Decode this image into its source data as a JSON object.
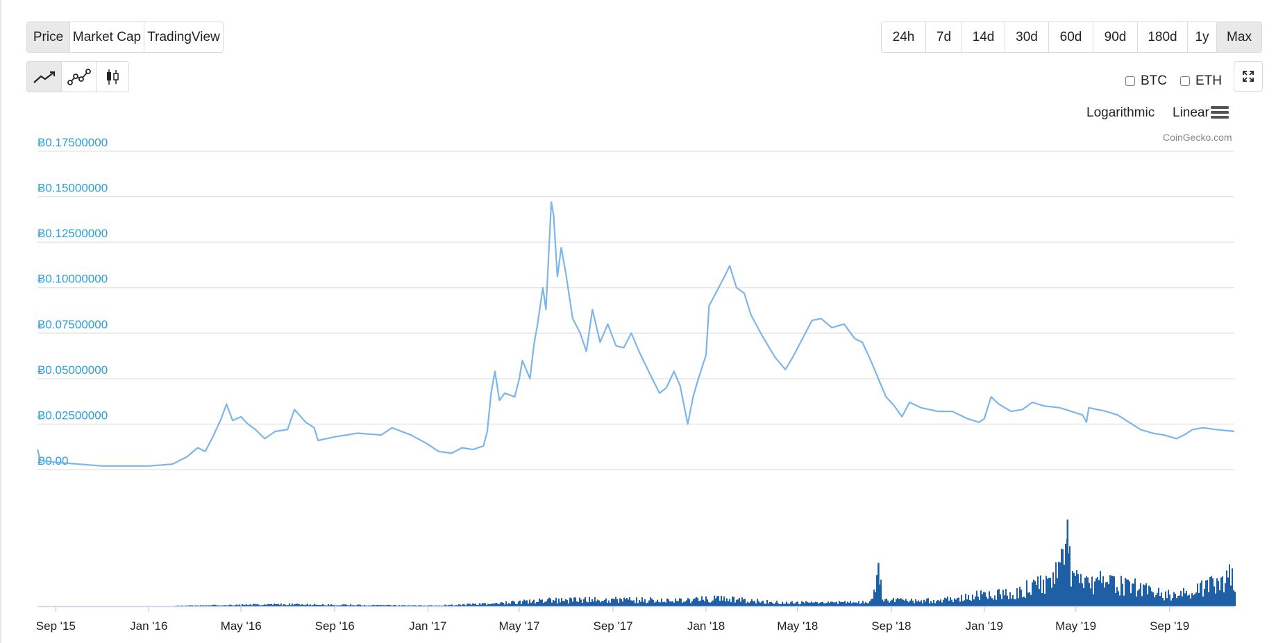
{
  "view_tabs": [
    {
      "label": "Price",
      "active": true
    },
    {
      "label": "Market Cap",
      "active": false
    },
    {
      "label": "TradingView",
      "active": false
    }
  ],
  "range_tabs": [
    {
      "label": "24h",
      "active": false
    },
    {
      "label": "7d",
      "active": false
    },
    {
      "label": "14d",
      "active": false
    },
    {
      "label": "30d",
      "active": false
    },
    {
      "label": "60d",
      "active": false
    },
    {
      "label": "90d",
      "active": false
    },
    {
      "label": "180d",
      "active": false
    },
    {
      "label": "1y",
      "active": false
    },
    {
      "label": "Max",
      "active": true
    }
  ],
  "chart_type_tabs": [
    {
      "icon": "line-chart-icon",
      "active": true
    },
    {
      "icon": "scatter-line-icon",
      "active": false
    },
    {
      "icon": "candlestick-icon",
      "active": false
    }
  ],
  "compare": [
    {
      "label": "BTC",
      "checked": false
    },
    {
      "label": "ETH",
      "checked": false
    }
  ],
  "scale_options": {
    "logarithmic": "Logarithmic",
    "linear": "Linear"
  },
  "menu_icon": "hamburger-menu-icon",
  "expand_icon": "expand-icon",
  "credit": "CoinGecko.com",
  "colors": {
    "price_line": "#7cb5ec",
    "volume": "#1f5fa6",
    "axis_label": "#2b9fd9",
    "grid": "#e6e6e6"
  },
  "chart_data": {
    "type": "line",
    "x_ticks": [
      "Sep '15",
      "Jan '16",
      "May '16",
      "Sep '16",
      "Jan '17",
      "May '17",
      "Sep '17",
      "Jan '18",
      "May '18",
      "Sep '18",
      "Jan '19",
      "May '19",
      "Sep '19"
    ],
    "y_tick_labels": [
      "Ƀ0.00",
      "Ƀ0.02500000",
      "Ƀ0.05000000",
      "Ƀ0.07500000",
      "Ƀ0.10000000",
      "Ƀ0.12500000",
      "Ƀ0.15000000",
      "Ƀ0.17500000"
    ],
    "ylim": [
      0,
      0.175
    ],
    "xlim": [
      "2015-08-08",
      "2019-11-25"
    ],
    "grid": true,
    "series": [
      {
        "values": [
          [
            "2015-08-08",
            0.011
          ],
          [
            "2015-08-12",
            0.005
          ],
          [
            "2015-09-01",
            0.004
          ],
          [
            "2015-10-01",
            0.003
          ],
          [
            "2015-11-01",
            0.002
          ],
          [
            "2015-12-01",
            0.002
          ],
          [
            "2016-01-01",
            0.002
          ],
          [
            "2016-02-01",
            0.003
          ],
          [
            "2016-02-20",
            0.007
          ],
          [
            "2016-03-05",
            0.012
          ],
          [
            "2016-03-15",
            0.01
          ],
          [
            "2016-03-25",
            0.018
          ],
          [
            "2016-04-05",
            0.028
          ],
          [
            "2016-04-12",
            0.036
          ],
          [
            "2016-04-20",
            0.027
          ],
          [
            "2016-05-01",
            0.029
          ],
          [
            "2016-05-10",
            0.025
          ],
          [
            "2016-05-20",
            0.022
          ],
          [
            "2016-06-01",
            0.017
          ],
          [
            "2016-06-15",
            0.021
          ],
          [
            "2016-07-01",
            0.022
          ],
          [
            "2016-07-10",
            0.033
          ],
          [
            "2016-07-25",
            0.026
          ],
          [
            "2016-08-05",
            0.023
          ],
          [
            "2016-08-10",
            0.016
          ],
          [
            "2016-09-01",
            0.018
          ],
          [
            "2016-10-01",
            0.02
          ],
          [
            "2016-11-01",
            0.019
          ],
          [
            "2016-11-15",
            0.023
          ],
          [
            "2016-12-10",
            0.019
          ],
          [
            "2017-01-01",
            0.014
          ],
          [
            "2017-01-15",
            0.01
          ],
          [
            "2017-02-01",
            0.009
          ],
          [
            "2017-02-15",
            0.012
          ],
          [
            "2017-03-01",
            0.011
          ],
          [
            "2017-03-15",
            0.013
          ],
          [
            "2017-03-20",
            0.021
          ],
          [
            "2017-03-25",
            0.042
          ],
          [
            "2017-03-30",
            0.054
          ],
          [
            "2017-04-05",
            0.038
          ],
          [
            "2017-04-12",
            0.042
          ],
          [
            "2017-04-25",
            0.04
          ],
          [
            "2017-05-01",
            0.05
          ],
          [
            "2017-05-05",
            0.06
          ],
          [
            "2017-05-15",
            0.05
          ],
          [
            "2017-05-20",
            0.068
          ],
          [
            "2017-05-25",
            0.08
          ],
          [
            "2017-06-01",
            0.1
          ],
          [
            "2017-06-05",
            0.088
          ],
          [
            "2017-06-12",
            0.147
          ],
          [
            "2017-06-15",
            0.14
          ],
          [
            "2017-06-20",
            0.106
          ],
          [
            "2017-06-25",
            0.122
          ],
          [
            "2017-07-01",
            0.108
          ],
          [
            "2017-07-10",
            0.083
          ],
          [
            "2017-07-20",
            0.075
          ],
          [
            "2017-07-28",
            0.065
          ],
          [
            "2017-08-05",
            0.088
          ],
          [
            "2017-08-15",
            0.07
          ],
          [
            "2017-08-25",
            0.08
          ],
          [
            "2017-09-05",
            0.068
          ],
          [
            "2017-09-15",
            0.067
          ],
          [
            "2017-09-25",
            0.075
          ],
          [
            "2017-10-05",
            0.065
          ],
          [
            "2017-10-20",
            0.052
          ],
          [
            "2017-11-01",
            0.042
          ],
          [
            "2017-11-10",
            0.045
          ],
          [
            "2017-11-20",
            0.054
          ],
          [
            "2017-11-28",
            0.046
          ],
          [
            "2017-12-08",
            0.025
          ],
          [
            "2017-12-15",
            0.04
          ],
          [
            "2017-12-22",
            0.05
          ],
          [
            "2018-01-01",
            0.063
          ],
          [
            "2018-01-05",
            0.09
          ],
          [
            "2018-01-15",
            0.098
          ],
          [
            "2018-01-25",
            0.106
          ],
          [
            "2018-02-01",
            0.112
          ],
          [
            "2018-02-10",
            0.1
          ],
          [
            "2018-02-20",
            0.097
          ],
          [
            "2018-03-01",
            0.085
          ],
          [
            "2018-03-15",
            0.074
          ],
          [
            "2018-04-01",
            0.062
          ],
          [
            "2018-04-15",
            0.055
          ],
          [
            "2018-04-25",
            0.062
          ],
          [
            "2018-05-10",
            0.074
          ],
          [
            "2018-05-20",
            0.082
          ],
          [
            "2018-06-01",
            0.083
          ],
          [
            "2018-06-15",
            0.078
          ],
          [
            "2018-07-01",
            0.08
          ],
          [
            "2018-07-15",
            0.072
          ],
          [
            "2018-07-25",
            0.07
          ],
          [
            "2018-08-05",
            0.06
          ],
          [
            "2018-08-15",
            0.05
          ],
          [
            "2018-08-25",
            0.04
          ],
          [
            "2018-09-05",
            0.035
          ],
          [
            "2018-09-15",
            0.029
          ],
          [
            "2018-09-25",
            0.037
          ],
          [
            "2018-10-10",
            0.034
          ],
          [
            "2018-11-01",
            0.032
          ],
          [
            "2018-11-20",
            0.032
          ],
          [
            "2018-12-10",
            0.028
          ],
          [
            "2018-12-25",
            0.026
          ],
          [
            "2019-01-01",
            0.028
          ],
          [
            "2019-01-10",
            0.04
          ],
          [
            "2019-01-20",
            0.036
          ],
          [
            "2019-02-05",
            0.032
          ],
          [
            "2019-02-20",
            0.033
          ],
          [
            "2019-03-05",
            0.037
          ],
          [
            "2019-03-20",
            0.035
          ],
          [
            "2019-04-10",
            0.034
          ],
          [
            "2019-04-25",
            0.032
          ],
          [
            "2019-05-10",
            0.03
          ],
          [
            "2019-05-15",
            0.026
          ],
          [
            "2019-05-18",
            0.034
          ],
          [
            "2019-06-10",
            0.032
          ],
          [
            "2019-06-25",
            0.03
          ],
          [
            "2019-07-10",
            0.026
          ],
          [
            "2019-07-25",
            0.022
          ],
          [
            "2019-08-10",
            0.02
          ],
          [
            "2019-08-25",
            0.019
          ],
          [
            "2019-09-10",
            0.017
          ],
          [
            "2019-09-20",
            0.019
          ],
          [
            "2019-10-01",
            0.022
          ],
          [
            "2019-10-15",
            0.023
          ],
          [
            "2019-11-01",
            0.022
          ],
          [
            "2019-11-25",
            0.021
          ]
        ]
      }
    ],
    "volume": {
      "values": [
        [
          "2015-08-08",
          0.0
        ],
        [
          "2016-01-01",
          0.0
        ],
        [
          "2016-04-01",
          0.02
        ],
        [
          "2016-07-01",
          0.03
        ],
        [
          "2016-10-01",
          0.02
        ],
        [
          "2017-01-01",
          0.01
        ],
        [
          "2017-03-25",
          0.04
        ],
        [
          "2017-06-01",
          0.09
        ],
        [
          "2017-09-01",
          0.1
        ],
        [
          "2017-12-01",
          0.09
        ],
        [
          "2018-01-15",
          0.12
        ],
        [
          "2018-04-01",
          0.06
        ],
        [
          "2018-06-01",
          0.05
        ],
        [
          "2018-08-01",
          0.07
        ],
        [
          "2018-08-15",
          0.5
        ],
        [
          "2018-08-20",
          0.1
        ],
        [
          "2018-10-01",
          0.08
        ],
        [
          "2018-12-01",
          0.12
        ],
        [
          "2019-01-01",
          0.2
        ],
        [
          "2019-02-01",
          0.18
        ],
        [
          "2019-03-01",
          0.3
        ],
        [
          "2019-04-01",
          0.4
        ],
        [
          "2019-04-20",
          1.0
        ],
        [
          "2019-04-25",
          0.45
        ],
        [
          "2019-05-15",
          0.4
        ],
        [
          "2019-06-15",
          0.35
        ],
        [
          "2019-07-15",
          0.3
        ],
        [
          "2019-08-15",
          0.2
        ],
        [
          "2019-09-15",
          0.18
        ],
        [
          "2019-10-15",
          0.28
        ],
        [
          "2019-11-20",
          0.48
        ],
        [
          "2019-11-25",
          0.28
        ]
      ]
    }
  }
}
